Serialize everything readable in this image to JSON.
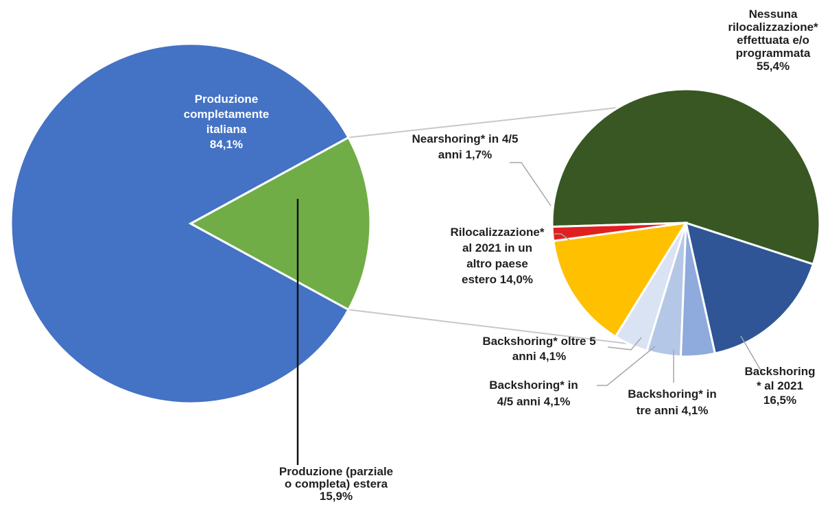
{
  "chart_data": {
    "type": "pie",
    "variant": "pie-of-pie",
    "colors": {
      "italiana": "#4472c4",
      "estera": "#70ad47",
      "nessuna": "#385723",
      "backshoring_2021": "#2f5597",
      "backshoring_tre": "#8faadc",
      "backshoring_45": "#b4c7e7",
      "backshoring_oltre5": "#dae3f3",
      "altro_paese": "#ffc000",
      "nearshoring": "#e02020"
    },
    "main_pie": {
      "slices": [
        {
          "key": "italiana",
          "label": [
            "Produzione",
            "completamente",
            "italiana",
            "84,1%"
          ],
          "value": 84.1
        },
        {
          "key": "estera",
          "label": [
            "Produzione (parziale",
            "o completa) estera",
            "15,9%"
          ],
          "value": 15.9
        }
      ]
    },
    "secondary_pie": {
      "slices": [
        {
          "key": "nessuna",
          "label": [
            "Nessuna",
            "rilocalizzazione*",
            "effettuata e/o",
            "programmata",
            "55,4%"
          ],
          "value": 55.4
        },
        {
          "key": "backshoring_2021",
          "label": [
            "Backshoring",
            "* al 2021",
            "16,5%"
          ],
          "value": 16.5
        },
        {
          "key": "backshoring_tre",
          "label": [
            "Backshoring* in",
            "tre anni 4,1%"
          ],
          "value": 4.1
        },
        {
          "key": "backshoring_45",
          "label": [
            "Backshoring* in",
            "4/5 anni 4,1%"
          ],
          "value": 4.1
        },
        {
          "key": "backshoring_oltre5",
          "label": [
            "Backshoring* oltre 5",
            "anni 4,1%"
          ],
          "value": 4.1
        },
        {
          "key": "altro_paese",
          "label": [
            "Rilocalizzazione*",
            "al 2021 in un",
            "altro paese",
            "estero 14,0%"
          ],
          "value": 14.0
        },
        {
          "key": "nearshoring",
          "label": [
            "Nearshoring* in 4/5",
            "anni 1,7%"
          ],
          "value": 1.7
        }
      ]
    }
  }
}
